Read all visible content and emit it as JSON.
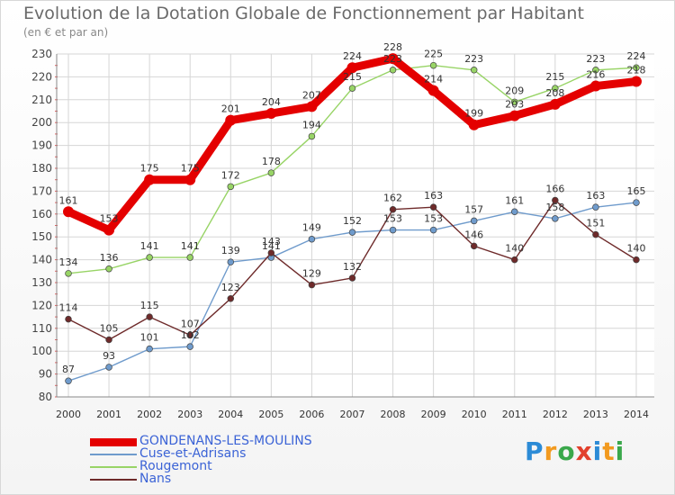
{
  "title": "Evolution de la Dotation Globale de Fonctionnement par Habitant",
  "subtitle": "(en € et par an)",
  "logo": {
    "text": "Proxiti",
    "colors": [
      "#2c8bd6",
      "#f29a1f",
      "#3aa84b",
      "#e2402c",
      "#2c8bd6",
      "#f29a1f",
      "#3aa84b"
    ]
  },
  "chart_data": {
    "type": "line",
    "title": "Evolution de la Dotation Globale de Fonctionnement par Habitant",
    "subtitle": "(en € et par an)",
    "xlabel": "",
    "ylabel": "",
    "ylim": [
      80,
      230
    ],
    "yticks": [
      80,
      90,
      100,
      110,
      120,
      130,
      140,
      150,
      160,
      170,
      180,
      190,
      200,
      210,
      220,
      230
    ],
    "categories": [
      "2000",
      "2001",
      "2002",
      "2003",
      "2004",
      "2005",
      "2006",
      "2007",
      "2008",
      "2009",
      "2010",
      "2011",
      "2012",
      "2013",
      "2014"
    ],
    "grid": true,
    "legend_position": "bottom",
    "series": [
      {
        "name": "GONDENANS-LES-MOULINS",
        "color": "#e40000",
        "values": [
          161,
          153,
          175,
          175,
          201,
          204,
          207,
          224,
          228,
          214,
          199,
          203,
          208,
          216,
          218
        ]
      },
      {
        "name": "Cuse-et-Adrisans",
        "color": "#6f9bcc",
        "values": [
          87,
          93,
          101,
          102,
          139,
          141,
          149,
          152,
          153,
          153,
          157,
          161,
          158,
          163,
          165
        ]
      },
      {
        "name": "Rougemont",
        "color": "#98d466",
        "values": [
          134,
          136,
          141,
          141,
          172,
          178,
          194,
          215,
          223,
          225,
          223,
          209,
          215,
          223,
          224
        ]
      },
      {
        "name": "Nans",
        "color": "#6e2a2a",
        "values": [
          114,
          105,
          115,
          107,
          123,
          143,
          129,
          132,
          162,
          163,
          146,
          140,
          166,
          151,
          140
        ]
      }
    ]
  }
}
